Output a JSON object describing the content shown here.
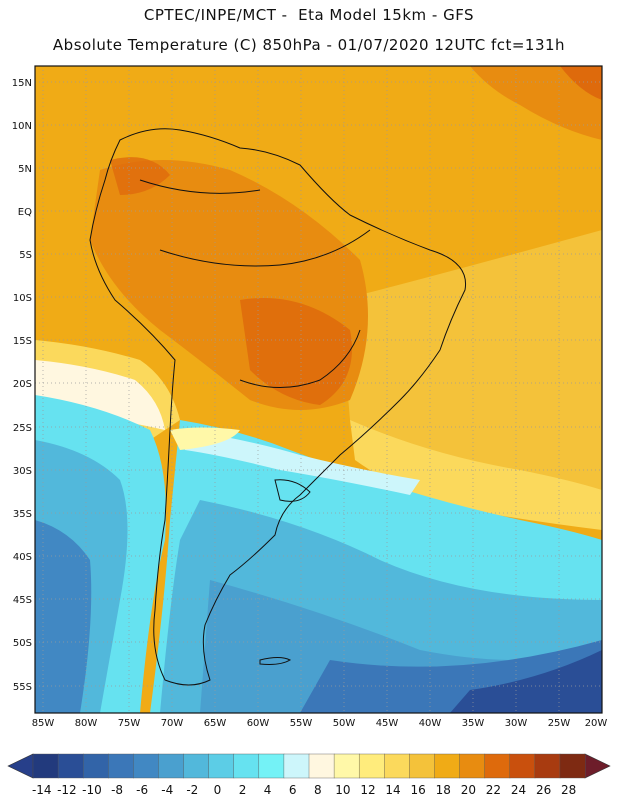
{
  "header": {
    "line1": "CPTEC/INPE/MCT -  Eta Model 15km - GFS",
    "line2": "Absolute Temperature (C) 850hPa - 01/07/2020 12UTC fct=131h"
  },
  "map": {
    "lat_labels": [
      "15N",
      "10N",
      "5N",
      "EQ",
      "5S",
      "10S",
      "15S",
      "20S",
      "25S",
      "30S",
      "35S",
      "40S",
      "45S",
      "50S",
      "55S"
    ],
    "lon_labels": [
      "85W",
      "80W",
      "75W",
      "70W",
      "65W",
      "60W",
      "55W",
      "50W",
      "45W",
      "40W",
      "35W",
      "30W",
      "25W",
      "20W"
    ]
  },
  "colorbar": {
    "labels": [
      "-14",
      "-12",
      "-10",
      "-8",
      "-6",
      "-4",
      "-2",
      "0",
      "2",
      "4",
      "6",
      "8",
      "10",
      "12",
      "14",
      "16",
      "18",
      "20",
      "22",
      "24",
      "26",
      "28"
    ],
    "colors": [
      "#223a7d",
      "#2a4e96",
      "#3264a8",
      "#3b77b8",
      "#4188c3",
      "#4aa0cf",
      "#52b8db",
      "#5ccde6",
      "#66e2f0",
      "#74f2f6",
      "#cdf6fb",
      "#fff7e0",
      "#fff8a8",
      "#ffec7c",
      "#fbd95c",
      "#f4c23a",
      "#f0ab16",
      "#e88c10",
      "#de6a0c",
      "#c9500d",
      "#a83b10",
      "#7e2a12"
    ],
    "under_color": "#273f8a",
    "over_color": "#6d1d2a"
  }
}
